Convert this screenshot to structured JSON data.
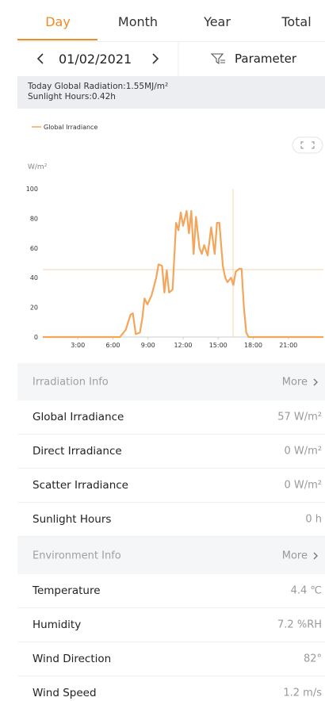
{
  "tabs": [
    "Day",
    "Month",
    "Year",
    "Total"
  ],
  "date": "01/02/2021",
  "parameter": "Parameter",
  "summary": [
    "Today Global Radiation:1.55MJ/m²",
    "Sunlight Hours:0.42h"
  ],
  "chart_data": {
    "type": "line",
    "y_label": "W/m²",
    "x": [
      0,
      6.6,
      7.1,
      7.5,
      7.7,
      7.95,
      8.3,
      8.5,
      8.7,
      8.95,
      9.3,
      9.7,
      9.9,
      10.2,
      10.4,
      10.6,
      10.8,
      11.1,
      11.4,
      11.6,
      11.8,
      12.0,
      12.3,
      12.5,
      12.7,
      12.9,
      13.1,
      13.4,
      13.6,
      13.8,
      14.1,
      14.4,
      14.7,
      14.9,
      15.1,
      15.4,
      15.6,
      15.8,
      16.1,
      16.3,
      16.5,
      16.8,
      17.0,
      17.2,
      17.4,
      17.6,
      24
    ],
    "series": [
      {
        "name": "Global Irradiance",
        "color": "#f5a55a",
        "values": [
          0,
          0,
          5,
          15,
          16,
          2,
          3,
          12,
          26,
          22,
          28,
          40,
          49,
          48,
          30,
          45,
          30,
          32,
          77,
          72,
          84,
          75,
          85,
          70,
          85,
          56,
          81,
          60,
          56,
          62,
          55,
          74,
          56,
          77,
          77,
          48,
          40,
          37,
          40,
          35,
          44,
          46,
          46,
          20,
          3,
          0,
          0
        ]
      }
    ],
    "xlim": [
      0,
      24
    ],
    "xticks": [
      {
        "value": 3,
        "label": "3:00"
      },
      {
        "value": 6,
        "label": "6:00"
      },
      {
        "value": 9,
        "label": "9:00"
      },
      {
        "value": 12,
        "label": "12:00"
      },
      {
        "value": 15,
        "label": "15:00"
      },
      {
        "value": 18,
        "label": "18:00"
      },
      {
        "value": 21,
        "label": "21:00"
      }
    ],
    "ylim": [
      0,
      100
    ],
    "yticks": [
      0,
      20,
      40,
      60,
      80,
      100
    ],
    "grid": false
  },
  "sections": [
    {
      "title": "Irradiation Info",
      "more": "More",
      "rows": [
        {
          "label": "Global Irradiance",
          "value": "57 W/m²"
        },
        {
          "label": "Direct Irradiance",
          "value": "0 W/m²"
        },
        {
          "label": "Scatter Irradiance",
          "value": "0 W/m²"
        },
        {
          "label": "Sunlight Hours",
          "value": "0 h"
        }
      ]
    },
    {
      "title": "Environment Info",
      "more": "More",
      "rows": [
        {
          "label": "Temperature",
          "value": "4.4 ℃"
        },
        {
          "label": "Humidity",
          "value": "7.2 %RH"
        },
        {
          "label": "Wind Direction",
          "value": "82°"
        },
        {
          "label": "Wind Speed",
          "value": "1.2 m/s"
        }
      ]
    }
  ]
}
